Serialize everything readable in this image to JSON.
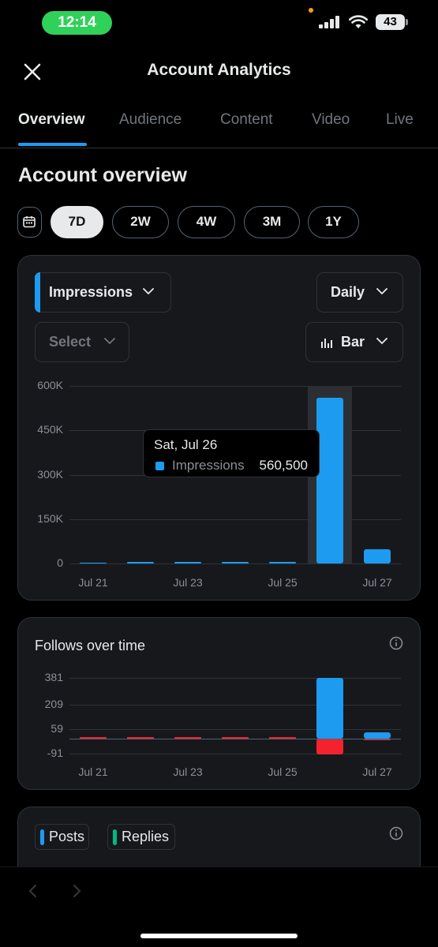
{
  "status_bar": {
    "time": "12:14",
    "battery": "43"
  },
  "header": {
    "title": "Account Analytics"
  },
  "tabs": [
    {
      "label": "Overview",
      "active": true
    },
    {
      "label": "Audience",
      "active": false
    },
    {
      "label": "Content",
      "active": false
    },
    {
      "label": "Video",
      "active": false
    },
    {
      "label": "Live",
      "active": false
    }
  ],
  "section_title": "Account overview",
  "ranges": [
    {
      "label": "7D",
      "active": true
    },
    {
      "label": "2W",
      "active": false
    },
    {
      "label": "4W",
      "active": false
    },
    {
      "label": "3M",
      "active": false
    },
    {
      "label": "1Y",
      "active": false
    }
  ],
  "impressions_card": {
    "metric": "Impressions",
    "interval": "Daily",
    "compare_placeholder": "Select",
    "chart_type_label": "Bar",
    "tooltip": {
      "date": "Sat, Jul 26",
      "series": "Impressions",
      "value": "560,500"
    }
  },
  "follows_card": {
    "title": "Follows over time"
  },
  "posts_card": {
    "legend": [
      "Posts",
      "Replies"
    ]
  },
  "colors": {
    "accent": "#1d9bf0",
    "negative": "#f4212e",
    "replies": "#00ba7c"
  },
  "chart_data": [
    {
      "type": "bar",
      "categories": [
        "Jul 21",
        "Jul 22",
        "Jul 23",
        "Jul 24",
        "Jul 25",
        "Jul 26",
        "Jul 27"
      ],
      "x_tick_labels": [
        "Jul 21",
        "Jul 23",
        "Jul 25",
        "Jul 27"
      ],
      "series": [
        {
          "name": "Impressions",
          "values": [
            4000,
            3000,
            3000,
            2500,
            3000,
            560500,
            48000
          ]
        }
      ],
      "y_ticks": [
        "600K",
        "450K",
        "300K",
        "150K",
        "0"
      ],
      "ylim": [
        0,
        600000
      ],
      "highlighted_category": "Jul 26",
      "grid": true
    },
    {
      "type": "bar",
      "title": "Follows over time",
      "categories": [
        "Jul 21",
        "Jul 22",
        "Jul 23",
        "Jul 24",
        "Jul 25",
        "Jul 26",
        "Jul 27"
      ],
      "x_tick_labels": [
        "Jul 21",
        "Jul 23",
        "Jul 25",
        "Jul 27"
      ],
      "series": [
        {
          "values": [
            0,
            0,
            0,
            0,
            0,
            381,
            40
          ]
        },
        {
          "values": [
            0,
            0,
            0,
            0,
            0,
            -91,
            -10
          ]
        }
      ],
      "y_ticks": [
        "381",
        "209",
        "59",
        "-91"
      ],
      "ylim": [
        -91,
        381
      ],
      "grid": true
    }
  ]
}
